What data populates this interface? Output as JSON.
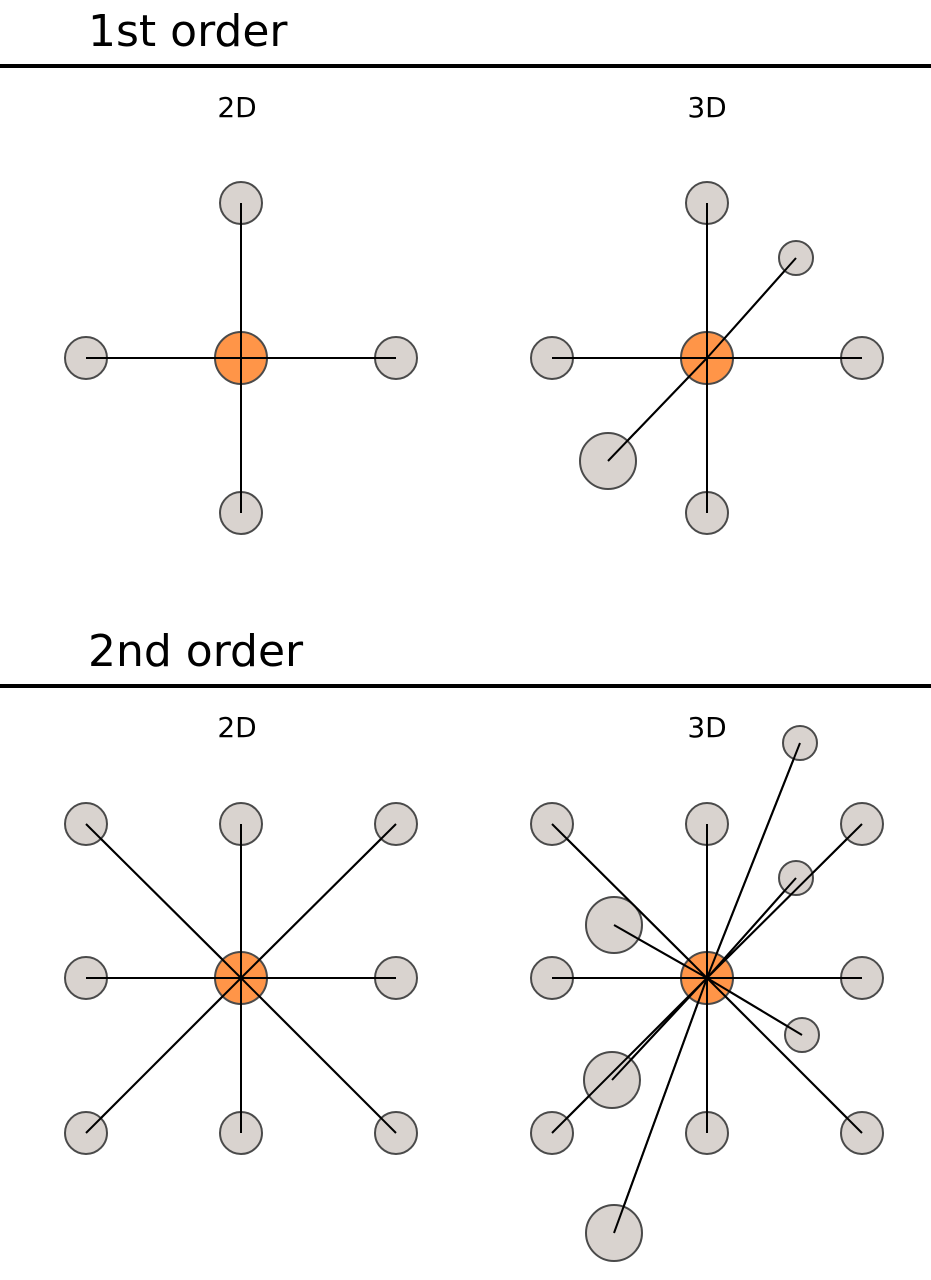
{
  "sections": [
    {
      "title": "1st order",
      "panels": [
        {
          "label": "2D"
        },
        {
          "label": "3D"
        }
      ]
    },
    {
      "title": "2nd order",
      "panels": [
        {
          "label": "2D"
        },
        {
          "label": "3D"
        }
      ]
    }
  ],
  "colors": {
    "center_node": "#ff9548",
    "neighbor_node": "#d9d3cf",
    "node_outline": "#4a4a4a",
    "edge": "#000000",
    "rule": "#000000"
  }
}
